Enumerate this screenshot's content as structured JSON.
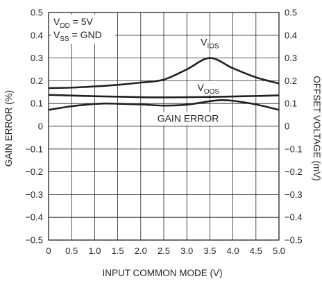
{
  "chart_data": {
    "type": "line",
    "xlabel": "INPUT COMMON MODE (V)",
    "ylabel_left": "GAIN ERROR (%)",
    "ylabel_right": "OFFSET VOLTAGE (mV)",
    "xlim": [
      0,
      5
    ],
    "ylim": [
      -0.5,
      0.5
    ],
    "grid": true,
    "x_ticks": [
      0,
      0.5,
      1.0,
      1.5,
      2.0,
      2.5,
      3.0,
      3.5,
      4.0,
      4.5,
      5.0
    ],
    "x_tick_labels": [
      "0",
      "0.5",
      "1.0",
      "1.5",
      "2.0",
      "2.5",
      "3.0",
      "3.5",
      "4.0",
      "4.5",
      "5.0"
    ],
    "y_ticks": [
      -0.5,
      -0.4,
      -0.3,
      -0.2,
      -0.1,
      0,
      0.1,
      0.2,
      0.3,
      0.4,
      0.5
    ],
    "y_tick_labels": [
      "−0.5",
      "−0.4",
      "−0.3",
      "−0.2",
      "−0.1",
      "0",
      "0.1",
      "0.2",
      "0.3",
      "0.4",
      "0.5"
    ],
    "conditions": [
      {
        "main": "V",
        "sub": "DD",
        "rest": " = 5V"
      },
      {
        "main": "V",
        "sub": "SS",
        "rest": " = GND"
      }
    ],
    "series": [
      {
        "name": "V_IOS",
        "label": {
          "main": "V",
          "sub": "IOS"
        },
        "x": [
          0,
          0.5,
          1.0,
          1.5,
          2.0,
          2.5,
          3.0,
          3.5,
          4.0,
          4.5,
          5.0
        ],
        "values": [
          0.168,
          0.17,
          0.175,
          0.182,
          0.192,
          0.205,
          0.25,
          0.3,
          0.255,
          0.215,
          0.188
        ]
      },
      {
        "name": "V_OOS",
        "label": {
          "main": "V",
          "sub": "OOS"
        },
        "x": [
          0,
          0.5,
          1.0,
          1.5,
          2.0,
          2.5,
          3.0,
          3.5,
          4.0,
          4.5,
          5.0
        ],
        "values": [
          0.138,
          0.135,
          0.132,
          0.13,
          0.128,
          0.127,
          0.128,
          0.129,
          0.131,
          0.133,
          0.136
        ]
      },
      {
        "name": "GAIN ERROR",
        "label": {
          "main": "GAIN ERROR",
          "sub": ""
        },
        "x": [
          0,
          0.5,
          1.0,
          1.25,
          1.5,
          2.0,
          2.5,
          3.0,
          3.5,
          3.75,
          4.0,
          4.5,
          5.0
        ],
        "values": [
          0.072,
          0.088,
          0.098,
          0.1,
          0.099,
          0.096,
          0.091,
          0.095,
          0.11,
          0.115,
          0.112,
          0.096,
          0.072
        ]
      }
    ]
  }
}
